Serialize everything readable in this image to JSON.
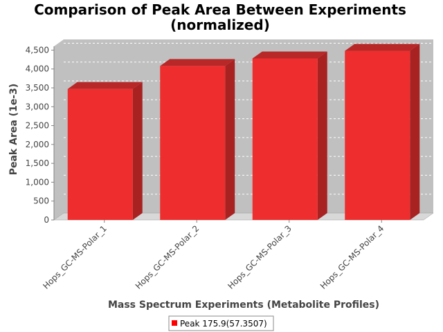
{
  "chart_data": {
    "type": "bar",
    "title_line1": "Comparison of Peak Area Between Experiments",
    "title_line2": "(normalized)",
    "xlabel": "Mass Spectrum Experiments (Metabolite Profiles)",
    "ylabel": "Peak Area (1e-3)",
    "categories": [
      "Hops_GC-MS-Polar_1",
      "Hops_GC-MS-Polar_2",
      "Hops_GC-MS-Polar_3",
      "Hops_GC-MS-Polar_4"
    ],
    "series": [
      {
        "name": "Peak 175.9(57.3507)",
        "values": [
          3470,
          4080,
          4280,
          4480
        ]
      }
    ],
    "yticks": [
      "0",
      "500",
      "1,000",
      "1,500",
      "2,000",
      "2,500",
      "3,000",
      "3,500",
      "4,000",
      "4,500"
    ],
    "ytick_values": [
      0,
      500,
      1000,
      1500,
      2000,
      2500,
      3000,
      3500,
      4000,
      4500
    ],
    "ylim": [
      0,
      4600
    ],
    "grid": true,
    "legend_position": "bottom",
    "colors": {
      "bar_front": "#ee2e2e",
      "bar_top": "#b82828",
      "bar_side": "#a82222",
      "plot_bg": "#c0c0c0",
      "floor": "#d8d8d8",
      "grid": "#ffffff",
      "legend_swatch": "#ff0000"
    }
  }
}
